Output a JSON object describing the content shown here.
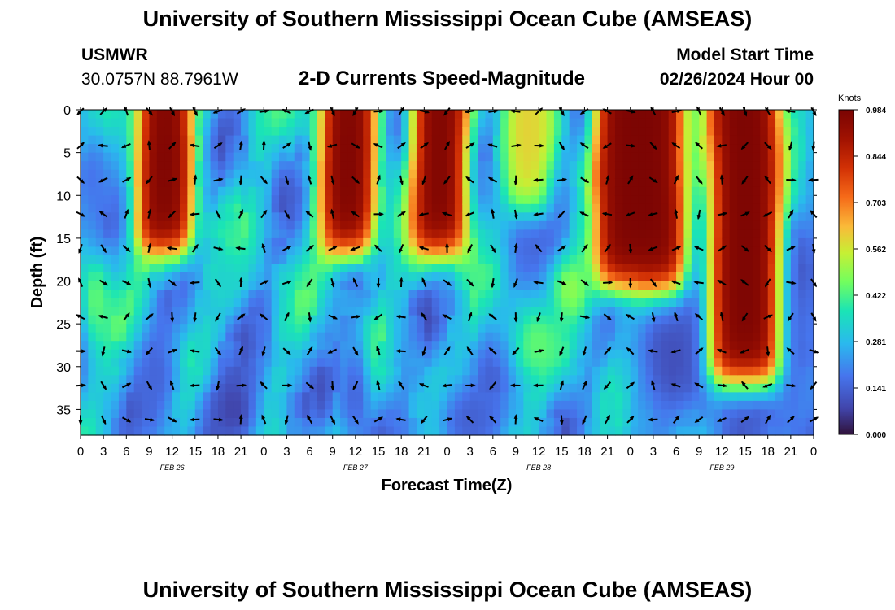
{
  "header": {
    "title": "University of Southern Mississippi Ocean Cube (AMSEAS)",
    "station_name": "USMWR",
    "station_coords": "30.0757N  88.7961W",
    "subtitle": "2-D Currents Speed-Magnitude",
    "model_start_label": "Model Start Time",
    "model_start_value": "02/26/2024 Hour 00"
  },
  "footer": {
    "title": "University of Southern Mississippi Ocean Cube (AMSEAS)"
  },
  "chart_data": {
    "type": "heatmap",
    "title": "2-D Currents Speed-Magnitude",
    "xlabel": "Forecast Time(Z)",
    "ylabel": "Depth (ft)",
    "x_ticks": [
      "0",
      "3",
      "6",
      "9",
      "12",
      "15",
      "18",
      "21",
      "0",
      "3",
      "6",
      "9",
      "12",
      "15",
      "18",
      "21",
      "0",
      "3",
      "6",
      "9",
      "12",
      "15",
      "18",
      "21",
      "0",
      "3",
      "6",
      "9",
      "12",
      "15",
      "18",
      "21",
      "0"
    ],
    "x_range_hours": [
      0,
      96
    ],
    "date_labels": [
      {
        "label": "FEB 26",
        "hour": 12
      },
      {
        "label": "FEB 27",
        "hour": 36
      },
      {
        "label": "FEB 28",
        "hour": 60
      },
      {
        "label": "FEB 29",
        "hour": 84
      }
    ],
    "y_ticks": [
      0,
      5,
      10,
      15,
      20,
      25,
      30,
      35
    ],
    "y_range_ft": [
      0,
      38
    ],
    "colorbar": {
      "unit": "Knots",
      "ticks": [
        "0.984",
        "0.844",
        "0.703",
        "0.562",
        "0.422",
        "0.281",
        "0.141",
        "0.000"
      ],
      "min": 0.0,
      "max": 0.984
    },
    "high_speed_cores": [
      {
        "hours": [
          7.5,
          14.5
        ],
        "depth_ft": [
          0,
          17
        ],
        "peak_knots": 0.98
      },
      {
        "hours": [
          31.5,
          38.5
        ],
        "depth_ft": [
          0,
          17
        ],
        "peak_knots": 0.98
      },
      {
        "hours": [
          43.5,
          50.5
        ],
        "depth_ft": [
          0,
          17
        ],
        "peak_knots": 0.98
      },
      {
        "hours": [
          55.5,
          61.5
        ],
        "depth_ft": [
          0,
          12
        ],
        "peak_knots": 0.6
      },
      {
        "hours": [
          67.5,
          79
        ],
        "depth_ft": [
          0,
          21
        ],
        "peak_knots": 0.98
      },
      {
        "hours": [
          82.5,
          91.5
        ],
        "depth_ft": [
          0,
          32
        ],
        "peak_knots": 0.98
      }
    ]
  }
}
